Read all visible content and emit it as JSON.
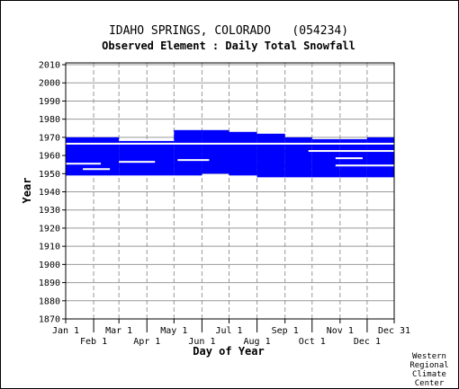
{
  "chart_data": {
    "type": "heatmap",
    "title": "IDAHO SPRINGS, COLORADO   (054234)",
    "subtitle": "Observed Element : Daily Total Snowfall",
    "xlabel": "Day of Year",
    "ylabel": "Year",
    "xlim": [
      1,
      365
    ],
    "ylim": [
      1870,
      2011
    ],
    "x_ticks_upper": [
      {
        "label": "Jan 1",
        "day": 1
      },
      {
        "label": "Mar 1",
        "day": 60
      },
      {
        "label": "May 1",
        "day": 121
      },
      {
        "label": "Jul 1",
        "day": 182
      },
      {
        "label": "Sep 1",
        "day": 244
      },
      {
        "label": "Nov 1",
        "day": 305
      },
      {
        "label": "Dec 31",
        "day": 365
      }
    ],
    "x_ticks_lower": [
      {
        "label": "Feb 1",
        "day": 32
      },
      {
        "label": "Apr 1",
        "day": 91
      },
      {
        "label": "Jun 1",
        "day": 152
      },
      {
        "label": "Aug 1",
        "day": 213
      },
      {
        "label": "Oct 1",
        "day": 274
      },
      {
        "label": "Dec 1",
        "day": 335
      }
    ],
    "y_ticks": [
      1870,
      1880,
      1890,
      1900,
      1910,
      1920,
      1930,
      1940,
      1950,
      1960,
      1970,
      1980,
      1990,
      2000,
      2010
    ],
    "grid": true,
    "data_color": "#0000ff",
    "data_blocks": [
      {
        "day_start": 1,
        "day_end": 60,
        "year_start": 1949,
        "year_end": 1970
      },
      {
        "day_start": 60,
        "day_end": 121,
        "year_start": 1949,
        "year_end": 1968
      },
      {
        "day_start": 121,
        "day_end": 152,
        "year_start": 1949,
        "year_end": 1974
      },
      {
        "day_start": 152,
        "day_end": 182,
        "year_start": 1950,
        "year_end": 1974
      },
      {
        "day_start": 182,
        "day_end": 213,
        "year_start": 1949,
        "year_end": 1973
      },
      {
        "day_start": 213,
        "day_end": 244,
        "year_start": 1948,
        "year_end": 1972
      },
      {
        "day_start": 244,
        "day_end": 274,
        "year_start": 1948,
        "year_end": 1970
      },
      {
        "day_start": 274,
        "day_end": 305,
        "year_start": 1948,
        "year_end": 1969
      },
      {
        "day_start": 305,
        "day_end": 335,
        "year_start": 1948,
        "year_end": 1969
      },
      {
        "day_start": 335,
        "day_end": 365,
        "year_start": 1948,
        "year_end": 1970
      }
    ],
    "missing_data": [
      {
        "day_start": 1,
        "day_end": 365,
        "year_start": 1966,
        "year_end": 1967
      },
      {
        "day_start": 1,
        "day_end": 40,
        "year_start": 1955,
        "year_end": 1956
      },
      {
        "day_start": 60,
        "day_end": 100,
        "year_start": 1956,
        "year_end": 1957
      },
      {
        "day_start": 125,
        "day_end": 160,
        "year_start": 1957,
        "year_end": 1958
      },
      {
        "day_start": 270,
        "day_end": 365,
        "year_start": 1962,
        "year_end": 1963
      },
      {
        "day_start": 300,
        "day_end": 330,
        "year_start": 1958,
        "year_end": 1959
      },
      {
        "day_start": 20,
        "day_end": 50,
        "year_start": 1952,
        "year_end": 1953
      },
      {
        "day_start": 300,
        "day_end": 365,
        "year_start": 1954,
        "year_end": 1955
      }
    ]
  },
  "credit": [
    "Western",
    "Regional",
    "Climate",
    "Center"
  ]
}
